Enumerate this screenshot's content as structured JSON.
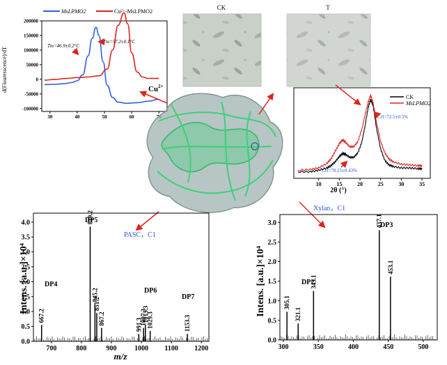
{
  "colors": {
    "blue_curve": "#2f5fe0",
    "red_curve": "#e0221c",
    "arrow": "#e0221c",
    "label_blue": "#2b4fd8",
    "protein_surface": "#9fb3b0",
    "protein_ribbon": "#3fcf7a"
  },
  "panels": {
    "micro_ck_label": "CK",
    "micro_t_label": "T",
    "cu_label": "Cu",
    "cu_sup": "2+",
    "pasc_label": "PASC，C1",
    "xylan_label": "Xylan，C1"
  },
  "chart_data": [
    {
      "id": "dsf",
      "type": "line",
      "ylabel": "d(Flouresscence)/dT",
      "xlim": [
        27,
        73
      ],
      "ylim": [
        -110000,
        200000
      ],
      "xticks": [
        30,
        40,
        50,
        60,
        70
      ],
      "yticks": [
        -100000,
        -50000,
        0,
        50000,
        100000,
        150000,
        200000
      ],
      "ytick_labels": [
        "-100000",
        "-50000",
        "0",
        "50000",
        "100000",
        "150000",
        "200000"
      ],
      "legend_position": "top",
      "series": [
        {
          "name": "MsLPMO2",
          "color": "#2f5fe0",
          "x": [
            28,
            32,
            35,
            38,
            40,
            42,
            44,
            45.5,
            46.9,
            48,
            49.5,
            51,
            53,
            55,
            58,
            62,
            66,
            70
          ],
          "y": [
            -18000,
            -17000,
            -15000,
            -11000,
            -5000,
            15000,
            80000,
            140000,
            178000,
            150000,
            60000,
            -20000,
            -62000,
            -78000,
            -82000,
            -80000,
            -75000,
            -68000
          ]
        },
        {
          "name": "Cu²⁺-MsLPMO2",
          "color": "#e0221c",
          "x": [
            28,
            32,
            36,
            40,
            44,
            48,
            51,
            53,
            55,
            57.2,
            58.5,
            60,
            62,
            64,
            66,
            70
          ],
          "y": [
            -3000,
            0,
            3000,
            6000,
            8000,
            12000,
            35000,
            100000,
            185000,
            228000,
            190000,
            90000,
            25000,
            8000,
            3000,
            3000
          ]
        }
      ],
      "annotations": [
        {
          "text": "Tm=46.9±0.2°C",
          "color": "#2f5fe0"
        },
        {
          "text": "Tm=57.2±0.1°C",
          "color": "#e0221c"
        }
      ]
    },
    {
      "id": "xrd",
      "type": "line",
      "xlabel": "2θ (°)",
      "xlim": [
        4,
        37
      ],
      "xticks": [
        10,
        15,
        20,
        25,
        30,
        35
      ],
      "legend_position": "top-right",
      "series": [
        {
          "name": "CK",
          "color": "#000000",
          "x": [
            5,
            8,
            10,
            12,
            13,
            14,
            15,
            15.8,
            16.5,
            17.5,
            18.5,
            19.5,
            20.5,
            21.3,
            22,
            22.6,
            23.2,
            24,
            25,
            26,
            27,
            28,
            30,
            32,
            34,
            35
          ],
          "y": [
            0.05,
            0.05,
            0.07,
            0.1,
            0.13,
            0.18,
            0.25,
            0.29,
            0.28,
            0.24,
            0.24,
            0.3,
            0.45,
            0.68,
            0.9,
            1.0,
            0.92,
            0.62,
            0.35,
            0.2,
            0.14,
            0.12,
            0.1,
            0.1,
            0.09,
            0.09
          ]
        },
        {
          "name": "MsLPMO2",
          "color": "#e0221c",
          "x": [
            5,
            8,
            10,
            12,
            13,
            14,
            15,
            15.8,
            16.5,
            17.5,
            18.5,
            19.5,
            20.5,
            21.3,
            22,
            22.6,
            23.2,
            24,
            25,
            26,
            27,
            28,
            30,
            32,
            34,
            35
          ],
          "y": [
            0.07,
            0.08,
            0.1,
            0.16,
            0.22,
            0.32,
            0.42,
            0.47,
            0.44,
            0.38,
            0.38,
            0.45,
            0.62,
            0.82,
            0.97,
            1.06,
            0.95,
            0.7,
            0.45,
            0.3,
            0.22,
            0.18,
            0.15,
            0.14,
            0.13,
            0.13
          ]
        }
      ],
      "annotations": [
        {
          "text": "CrI=72.5±0.5%",
          "color": "#2b4fd8"
        },
        {
          "text": "CrI=78.25±0.43%",
          "color": "#2b4fd8"
        }
      ]
    },
    {
      "id": "ms_pasc",
      "type": "bar",
      "xlabel": "m/z",
      "ylabel": "Intens. [a.u.]×10⁴",
      "xlim": [
        640,
        1225
      ],
      "ylim": [
        0,
        4.3
      ],
      "xticks": [
        700,
        800,
        900,
        1000,
        1100,
        1200
      ],
      "yticks": [
        0.0,
        0.5,
        1.0,
        1.5,
        2.0,
        2.5,
        3.0,
        3.5,
        4.0
      ],
      "ytick_labels": [
        "0.0",
        "0.5",
        "1.0",
        "1.5",
        "2.0",
        "2.5",
        "3.0",
        "3.5",
        "4.0"
      ],
      "peaks": [
        {
          "x": 667.2,
          "y": 0.55,
          "label": "667.2"
        },
        {
          "x": 829.2,
          "y": 3.85,
          "label": "829.2"
        },
        {
          "x": 845.2,
          "y": 1.25,
          "label": "845.2"
        },
        {
          "x": 851.2,
          "y": 0.95,
          "label": "851.2"
        },
        {
          "x": 867.2,
          "y": 0.45,
          "label": "867.2"
        },
        {
          "x": 991.3,
          "y": 0.25,
          "label": "991.3"
        },
        {
          "x": 1007.3,
          "y": 0.45,
          "label": "1007.3"
        },
        {
          "x": 1013.3,
          "y": 0.55,
          "label": "1013.3"
        },
        {
          "x": 1029.3,
          "y": 0.35,
          "label": "1029.3"
        },
        {
          "x": 1153.3,
          "y": 0.25,
          "label": "1153.3"
        }
      ],
      "dp_labels": [
        "DP4",
        "DP5",
        "DP6",
        "DP7"
      ]
    },
    {
      "id": "ms_xylan",
      "type": "bar",
      "ylabel": "Intens. [a.u.]×10⁴",
      "xlim": [
        295,
        520
      ],
      "ylim": [
        0,
        3.2
      ],
      "xticks": [
        300,
        350,
        400,
        450,
        500
      ],
      "yticks": [
        0.0,
        0.5,
        1.0,
        1.5,
        2.0,
        2.5,
        3.0
      ],
      "ytick_labels": [
        "0.0",
        "0.5",
        "1.0",
        "1.5",
        "2.0",
        "2.5",
        "3.0"
      ],
      "peaks": [
        {
          "x": 305.1,
          "y": 0.72,
          "label": "305.1"
        },
        {
          "x": 321.1,
          "y": 0.42,
          "label": "321.1"
        },
        {
          "x": 343.1,
          "y": 1.25,
          "label": "343.1"
        },
        {
          "x": 437.1,
          "y": 2.8,
          "label": "437.1"
        },
        {
          "x": 453.1,
          "y": 1.62,
          "label": "453.1"
        }
      ],
      "dp_labels": [
        "DP2",
        "DP3"
      ]
    }
  ]
}
